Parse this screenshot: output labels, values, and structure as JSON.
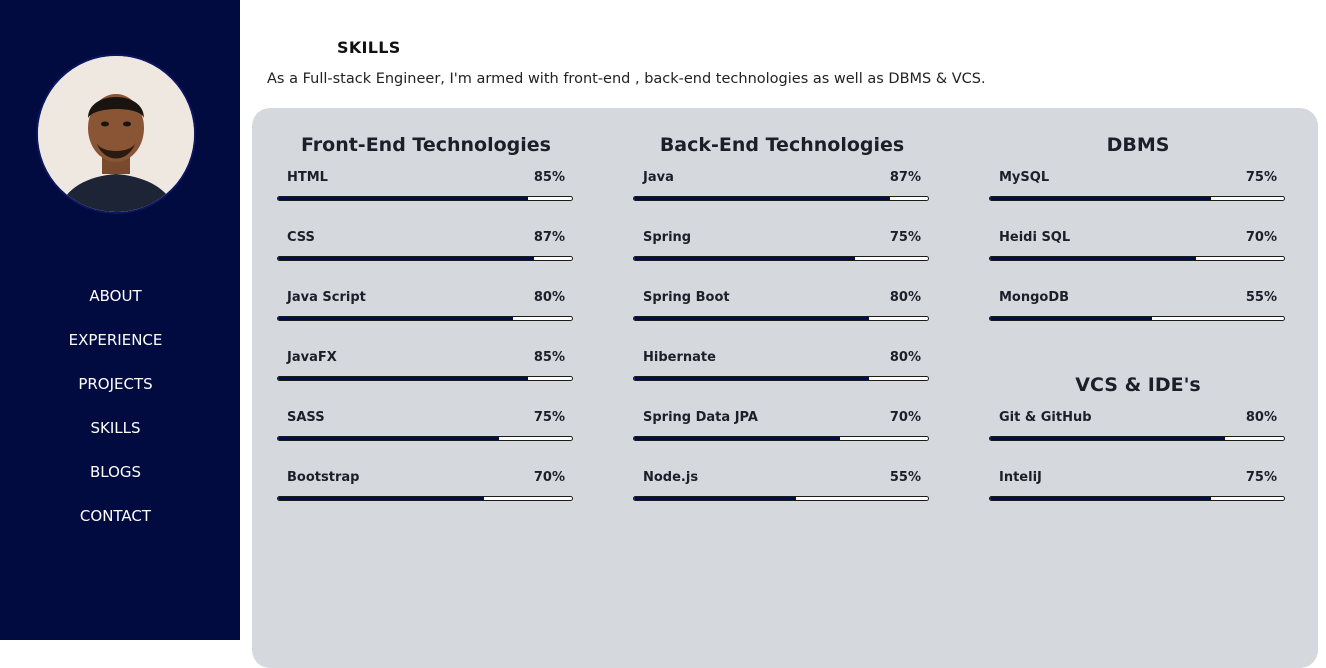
{
  "sidebar": {
    "nav": [
      "ABOUT",
      "EXPERIENCE",
      "PROJECTS",
      "SKILLS",
      "BLOGS",
      "CONTACT"
    ]
  },
  "page": {
    "title": "SKILLS",
    "intro": "As a Full-stack Engineer, I'm armed with front-end , back-end technologies as well as DBMS & VCS."
  },
  "colors": {
    "sidebar_bg": "#020b40",
    "panel_bg": "#d5d9de",
    "bar_fill": "#020b50"
  },
  "columns": [
    {
      "title": "Front-End Technologies",
      "skills": [
        {
          "name": "HTML",
          "label": "85%",
          "level": 85
        },
        {
          "name": "CSS",
          "label": "87%",
          "level": 87
        },
        {
          "name": "Java Script",
          "label": "80%",
          "level": 80
        },
        {
          "name": "JavaFX",
          "label": "85%",
          "level": 85
        },
        {
          "name": "SASS",
          "label": "75%",
          "level": 75
        },
        {
          "name": "Bootstrap",
          "label": "70%",
          "level": 70
        }
      ]
    },
    {
      "title": "Back-End Technologies",
      "skills": [
        {
          "name": "Java",
          "label": "87%",
          "level": 87
        },
        {
          "name": "Spring",
          "label": "75%",
          "level": 75
        },
        {
          "name": "Spring Boot",
          "label": "80%",
          "level": 80
        },
        {
          "name": "Hibernate",
          "label": "80%",
          "level": 80
        },
        {
          "name": "Spring Data JPA",
          "label": "70%",
          "level": 70
        },
        {
          "name": "Node.js",
          "label": "55%",
          "level": 55
        }
      ]
    },
    {
      "title": "DBMS",
      "skills": [
        {
          "name": "MySQL",
          "label": "75%",
          "level": 75
        },
        {
          "name": "Heidi SQL",
          "label": "70%",
          "level": 70
        },
        {
          "name": "MongoDB",
          "label": "55%",
          "level": 55
        }
      ]
    },
    {
      "title": "VCS & IDE's",
      "skills": [
        {
          "name": "Git & GitHub",
          "label": "80%",
          "level": 80
        },
        {
          "name": "InteliJ",
          "label": "75%",
          "level": 75
        }
      ]
    }
  ]
}
